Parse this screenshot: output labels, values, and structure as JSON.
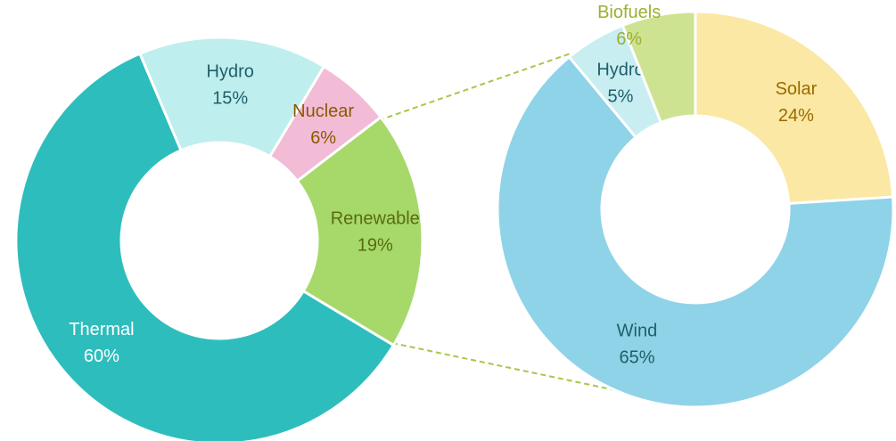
{
  "chart_data": [
    {
      "type": "donut",
      "categories": [
        "Thermal",
        "Hydro",
        "Nuclear",
        "Renewable"
      ],
      "values": [
        60,
        15,
        6,
        19
      ],
      "value_labels": [
        "60%",
        "15%",
        "6%",
        "19%"
      ],
      "colors": [
        "#2ebdbd",
        "#bfeeee",
        "#f2bbd6",
        "#a6d96a"
      ],
      "label_colors": [
        "#ffffff",
        "#1f5f6a",
        "#8a5a00",
        "#5a6a10"
      ]
    },
    {
      "type": "donut",
      "categories": [
        "Solar",
        "Wind",
        "Hydro",
        "Biofuels"
      ],
      "values": [
        24,
        65,
        5,
        6
      ],
      "value_labels": [
        "24%",
        "65%",
        "5%",
        "6%"
      ],
      "colors": [
        "#fae8a4",
        "#8fd3e8",
        "#c8eef2",
        "#cde391"
      ],
      "label_colors": [
        "#9a6a00",
        "#1f5f6a",
        "#1f5f6a",
        "#9ab030"
      ]
    }
  ]
}
